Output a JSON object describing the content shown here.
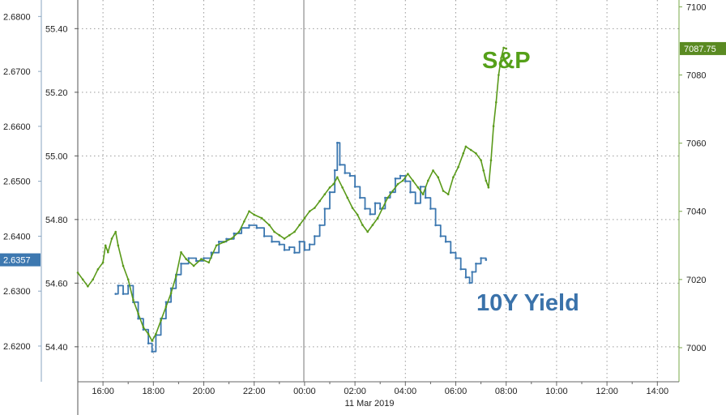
{
  "chart_data": {
    "type": "line",
    "x_tick_labels": [
      "16:00",
      "18:00",
      "20:00",
      "22:00",
      "00:00",
      "02:00",
      "04:00",
      "06:00",
      "08:00",
      "10:00",
      "12:00",
      "14:00"
    ],
    "date_label": "11 Mar 2019",
    "left_yield_axis": {
      "ticks": [
        "2.6200",
        "2.6300",
        "2.6400",
        "2.6500",
        "2.6600",
        "2.6700",
        "2.6800"
      ],
      "range": [
        2.6135,
        2.683
      ]
    },
    "left_price_axis": {
      "ticks": [
        "54.40",
        "54.60",
        "54.80",
        "55.00",
        "55.20",
        "55.40"
      ],
      "range": [
        54.29,
        55.49
      ]
    },
    "right_axis": {
      "ticks": [
        "7000",
        "7020",
        "7040",
        "7060",
        "7080",
        "7100"
      ],
      "range": [
        6990,
        7102
      ]
    },
    "series": [
      {
        "name": "10Y Yield",
        "color": "#3d78b0",
        "last_value_label": "2.6357",
        "points": [
          [
            16.5,
            2.6295
          ],
          [
            16.6,
            2.631
          ],
          [
            16.8,
            2.6295
          ],
          [
            17.0,
            2.631
          ],
          [
            17.2,
            2.628
          ],
          [
            17.4,
            2.625
          ],
          [
            17.6,
            2.623
          ],
          [
            17.8,
            2.6205
          ],
          [
            17.95,
            2.619
          ],
          [
            18.1,
            2.622
          ],
          [
            18.3,
            2.625
          ],
          [
            18.5,
            2.628
          ],
          [
            18.7,
            2.6305
          ],
          [
            18.9,
            2.633
          ],
          [
            19.1,
            2.635
          ],
          [
            19.4,
            2.636
          ],
          [
            19.7,
            2.6355
          ],
          [
            20.0,
            2.636
          ],
          [
            20.3,
            2.637
          ],
          [
            20.6,
            2.639
          ],
          [
            20.9,
            2.6395
          ],
          [
            21.2,
            2.6405
          ],
          [
            21.5,
            2.6415
          ],
          [
            21.8,
            2.642
          ],
          [
            22.1,
            2.6415
          ],
          [
            22.4,
            2.64
          ],
          [
            22.7,
            2.639
          ],
          [
            23.0,
            2.6385
          ],
          [
            23.2,
            2.6375
          ],
          [
            23.4,
            2.638
          ],
          [
            23.6,
            2.637
          ],
          [
            23.8,
            2.639
          ],
          [
            24.0,
            2.6375
          ],
          [
            24.2,
            2.6385
          ],
          [
            24.4,
            2.64
          ],
          [
            24.6,
            2.642
          ],
          [
            24.8,
            2.645
          ],
          [
            25.0,
            2.648
          ],
          [
            25.2,
            2.652
          ],
          [
            25.3,
            2.657
          ],
          [
            25.4,
            2.653
          ],
          [
            25.6,
            2.6515
          ],
          [
            25.8,
            2.651
          ],
          [
            26.0,
            2.649
          ],
          [
            26.2,
            2.647
          ],
          [
            26.4,
            2.645
          ],
          [
            26.6,
            2.644
          ],
          [
            26.8,
            2.646
          ],
          [
            27.0,
            2.645
          ],
          [
            27.2,
            2.647
          ],
          [
            27.4,
            2.648
          ],
          [
            27.6,
            2.6505
          ],
          [
            27.8,
            2.651
          ],
          [
            28.0,
            2.65
          ],
          [
            28.2,
            2.648
          ],
          [
            28.4,
            2.646
          ],
          [
            28.6,
            2.649
          ],
          [
            28.8,
            2.647
          ],
          [
            29.0,
            2.645
          ],
          [
            29.2,
            2.642
          ],
          [
            29.4,
            2.64
          ],
          [
            29.6,
            2.639
          ],
          [
            29.8,
            2.637
          ],
          [
            30.0,
            2.636
          ],
          [
            30.2,
            2.634
          ],
          [
            30.4,
            2.6325
          ],
          [
            30.55,
            2.6315
          ],
          [
            30.65,
            2.6335
          ],
          [
            30.8,
            2.635
          ],
          [
            31.0,
            2.636
          ],
          [
            31.2,
            2.6357
          ]
        ]
      },
      {
        "name": "S&P",
        "color": "#5a9a1a",
        "last_value_label": "7087.75",
        "points": [
          [
            15.0,
            7022
          ],
          [
            15.2,
            7020
          ],
          [
            15.4,
            7018
          ],
          [
            15.6,
            7020
          ],
          [
            15.8,
            7023
          ],
          [
            16.0,
            7025
          ],
          [
            16.1,
            7030
          ],
          [
            16.2,
            7028
          ],
          [
            16.35,
            7032
          ],
          [
            16.5,
            7034
          ],
          [
            16.6,
            7030
          ],
          [
            16.8,
            7024
          ],
          [
            17.0,
            7020
          ],
          [
            17.2,
            7014
          ],
          [
            17.4,
            7010
          ],
          [
            17.6,
            7006
          ],
          [
            17.8,
            7004
          ],
          [
            17.95,
            7002
          ],
          [
            18.1,
            7004
          ],
          [
            18.3,
            7008
          ],
          [
            18.5,
            7012
          ],
          [
            18.7,
            7016
          ],
          [
            18.9,
            7021
          ],
          [
            19.1,
            7028
          ],
          [
            19.3,
            7026
          ],
          [
            19.6,
            7024
          ],
          [
            19.9,
            7026
          ],
          [
            20.2,
            7025
          ],
          [
            20.5,
            7030
          ],
          [
            20.8,
            7031
          ],
          [
            21.1,
            7032
          ],
          [
            21.4,
            7034
          ],
          [
            21.6,
            7037
          ],
          [
            21.8,
            7040
          ],
          [
            22.0,
            7039
          ],
          [
            22.3,
            7038
          ],
          [
            22.6,
            7036
          ],
          [
            22.8,
            7034
          ],
          [
            23.0,
            7033
          ],
          [
            23.2,
            7032
          ],
          [
            23.4,
            7033
          ],
          [
            23.6,
            7034
          ],
          [
            23.8,
            7036
          ],
          [
            24.0,
            7038
          ],
          [
            24.2,
            7040
          ],
          [
            24.4,
            7041
          ],
          [
            24.6,
            7043
          ],
          [
            24.8,
            7045
          ],
          [
            25.0,
            7047
          ],
          [
            25.15,
            7048
          ],
          [
            25.3,
            7050
          ],
          [
            25.5,
            7047
          ],
          [
            25.7,
            7044
          ],
          [
            25.9,
            7041
          ],
          [
            26.1,
            7039
          ],
          [
            26.3,
            7036
          ],
          [
            26.5,
            7034
          ],
          [
            26.7,
            7036
          ],
          [
            26.9,
            7038
          ],
          [
            27.1,
            7041
          ],
          [
            27.3,
            7044
          ],
          [
            27.5,
            7046
          ],
          [
            27.7,
            7048
          ],
          [
            27.9,
            7049
          ],
          [
            28.1,
            7051
          ],
          [
            28.3,
            7049
          ],
          [
            28.5,
            7047
          ],
          [
            28.7,
            7045
          ],
          [
            28.9,
            7049
          ],
          [
            29.1,
            7052
          ],
          [
            29.3,
            7050
          ],
          [
            29.5,
            7046
          ],
          [
            29.7,
            7045
          ],
          [
            29.9,
            7050
          ],
          [
            30.1,
            7053
          ],
          [
            30.3,
            7057
          ],
          [
            30.4,
            7059
          ],
          [
            30.6,
            7058
          ],
          [
            30.8,
            7057
          ],
          [
            31.0,
            7055
          ],
          [
            31.1,
            7052
          ],
          [
            31.2,
            7049
          ],
          [
            31.3,
            7047
          ],
          [
            31.4,
            7055
          ],
          [
            31.5,
            7065
          ],
          [
            31.6,
            7072
          ],
          [
            31.7,
            7080
          ],
          [
            31.8,
            7085
          ],
          [
            31.9,
            7088
          ],
          [
            32.0,
            7087.75
          ]
        ]
      }
    ]
  }
}
